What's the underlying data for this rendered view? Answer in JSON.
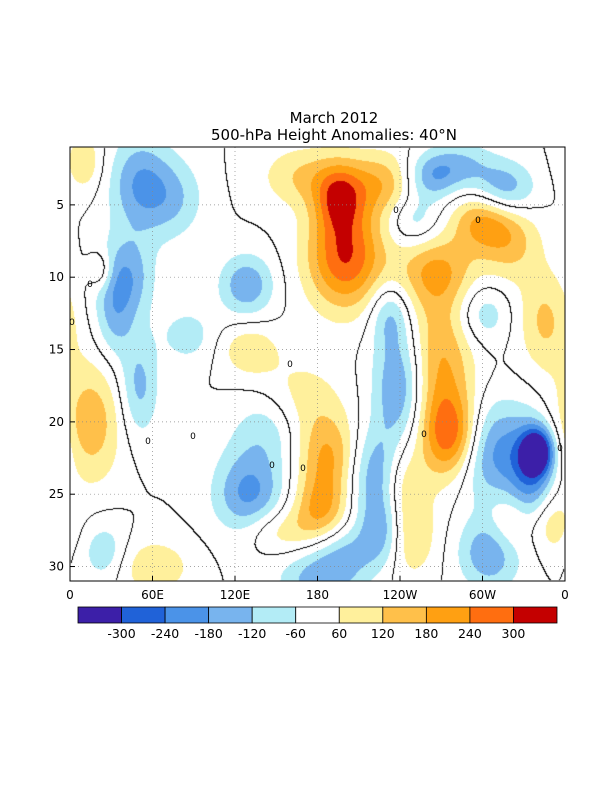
{
  "chart_data": {
    "type": "heatmap",
    "title_line1": "March 2012",
    "title_line2": "500-hPa Height Anomalies: 40°N",
    "x_ticks": [
      "0",
      "60E",
      "120E",
      "180",
      "120W",
      "60W",
      "0"
    ],
    "y_ticks": [
      "5",
      "10",
      "15",
      "20",
      "25",
      "30"
    ],
    "y_tick_values": [
      5,
      10,
      15,
      20,
      25,
      30
    ],
    "y_range": [
      1,
      31
    ],
    "contour_label": "0",
    "colorbar": {
      "labels": [
        "-300",
        "-240",
        "-180",
        "-120",
        "-60",
        "60",
        "120",
        "180",
        "240",
        "300"
      ],
      "colors": [
        "#3c1fa8",
        "#2062d8",
        "#4b93e8",
        "#78b4ee",
        "#b3ecf6",
        "#ffffff",
        "#fff09c",
        "#ffc04a",
        "#ffa012",
        "#ff6e10",
        "#c40000"
      ]
    },
    "anomaly_features": [
      {
        "lon": 200,
        "day": 8.5,
        "value": 300,
        "sx": 20,
        "sy": 2.6
      },
      {
        "lon": 195,
        "day": 4.5,
        "value": 200,
        "sx": 12,
        "sy": 1.6
      },
      {
        "lon": 226,
        "day": 3.5,
        "value": 160,
        "sx": 20,
        "sy": 1.6
      },
      {
        "lon": 170,
        "day": 3.0,
        "value": 120,
        "sx": 22,
        "sy": 1.5
      },
      {
        "lon": 268,
        "day": 16.5,
        "value": 200,
        "sx": 18,
        "sy": 4.5
      },
      {
        "lon": 278,
        "day": 21.0,
        "value": 240,
        "sx": 14,
        "sy": 2.0
      },
      {
        "lon": 265,
        "day": 9.5,
        "value": 150,
        "sx": 20,
        "sy": 1.7
      },
      {
        "lon": 300,
        "day": 6.0,
        "value": 190,
        "sx": 16,
        "sy": 1.5
      },
      {
        "lon": 320,
        "day": 7.5,
        "value": 130,
        "sx": 16,
        "sy": 2.0
      },
      {
        "lon": 300,
        "day": 12.5,
        "value": -110,
        "sx": 14,
        "sy": 1.5
      },
      {
        "lon": 345,
        "day": 13.0,
        "value": 130,
        "sx": 14,
        "sy": 2.5
      },
      {
        "lon": 15,
        "day": 20.0,
        "value": 160,
        "sx": 16,
        "sy": 3.0
      },
      {
        "lon": 10,
        "day": 2.0,
        "value": 110,
        "sx": 10,
        "sy": 1.5
      },
      {
        "lon": 22,
        "day": 9.5,
        "value": 120,
        "sx": 6,
        "sy": 0.9
      },
      {
        "lon": 160,
        "day": 19.0,
        "value": 160,
        "sx": 24,
        "sy": 2.2
      },
      {
        "lon": 188,
        "day": 22.5,
        "value": 180,
        "sx": 16,
        "sy": 2.0
      },
      {
        "lon": 182,
        "day": 26.0,
        "value": 170,
        "sx": 14,
        "sy": 1.6
      },
      {
        "lon": 240,
        "day": 24.0,
        "value": 170,
        "sx": 12,
        "sy": 2.2
      },
      {
        "lon": 245,
        "day": 28.0,
        "value": 130,
        "sx": 14,
        "sy": 2.0
      },
      {
        "lon": 150,
        "day": 27.5,
        "value": 110,
        "sx": 20,
        "sy": 1.2
      },
      {
        "lon": 130,
        "day": 15.0,
        "value": 110,
        "sx": 14,
        "sy": 1.2
      },
      {
        "lon": 60,
        "day": 30.0,
        "value": 110,
        "sx": 20,
        "sy": 1.4
      },
      {
        "lon": 320,
        "day": 27.0,
        "value": 100,
        "sx": 12,
        "sy": 1.5
      },
      {
        "lon": 350,
        "day": 27.0,
        "value": 110,
        "sx": 10,
        "sy": 1.5
      },
      {
        "lon": 262,
        "day": 3.0,
        "value": -170,
        "sx": 14,
        "sy": 1.2
      },
      {
        "lon": 250,
        "day": 6.0,
        "value": -110,
        "sx": 14,
        "sy": 1.3
      },
      {
        "lon": 315,
        "day": 4.0,
        "value": -190,
        "sx": 16,
        "sy": 1.4
      },
      {
        "lon": 285,
        "day": 2.2,
        "value": -110,
        "sx": 16,
        "sy": 1.2
      },
      {
        "lon": 50,
        "day": 3.5,
        "value": -170,
        "sx": 16,
        "sy": 2.4
      },
      {
        "lon": 75,
        "day": 4.5,
        "value": -110,
        "sx": 16,
        "sy": 2.0
      },
      {
        "lon": 40,
        "day": 10.0,
        "value": -170,
        "sx": 14,
        "sy": 2.0
      },
      {
        "lon": 32,
        "day": 13.0,
        "value": -110,
        "sx": 10,
        "sy": 2.0
      },
      {
        "lon": 128,
        "day": 10.5,
        "value": -170,
        "sx": 14,
        "sy": 1.5
      },
      {
        "lon": 240,
        "day": 17.5,
        "value": -210,
        "sx": 14,
        "sy": 3.0
      },
      {
        "lon": 232,
        "day": 12.5,
        "value": -120,
        "sx": 10,
        "sy": 1.6
      },
      {
        "lon": 147,
        "day": 20.0,
        "value": -180,
        "sx": 20,
        "sy": 2.0
      },
      {
        "lon": 225,
        "day": 23.5,
        "value": -200,
        "sx": 16,
        "sy": 2.2
      },
      {
        "lon": 228,
        "day": 27.5,
        "value": -180,
        "sx": 12,
        "sy": 1.8
      },
      {
        "lon": 130,
        "day": 25.0,
        "value": -200,
        "sx": 18,
        "sy": 2.2
      },
      {
        "lon": 180,
        "day": 31.0,
        "value": -150,
        "sx": 20,
        "sy": 1.6
      },
      {
        "lon": 200,
        "day": 29.0,
        "value": -110,
        "sx": 16,
        "sy": 1.4
      },
      {
        "lon": 305,
        "day": 22.0,
        "value": -200,
        "sx": 20,
        "sy": 2.5
      },
      {
        "lon": 340,
        "day": 22.0,
        "value": -320,
        "sx": 8,
        "sy": 1.1
      },
      {
        "lon": 335,
        "day": 23.5,
        "value": -200,
        "sx": 12,
        "sy": 2.5
      },
      {
        "lon": 305,
        "day": 29.0,
        "value": -180,
        "sx": 16,
        "sy": 1.8
      },
      {
        "lon": 50,
        "day": 17.5,
        "value": -140,
        "sx": 10,
        "sy": 2.5
      },
      {
        "lon": 25,
        "day": 29.0,
        "value": -110,
        "sx": 12,
        "sy": 1.5
      },
      {
        "lon": 85,
        "day": 14.0,
        "value": -90,
        "sx": 14,
        "sy": 1.4
      }
    ]
  }
}
